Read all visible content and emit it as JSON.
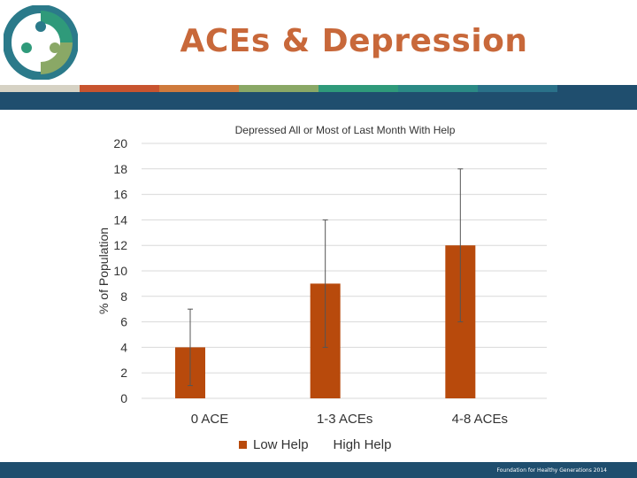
{
  "slide": {
    "title": "ACEs & Depression",
    "footer": "Foundation for Healthy Generations 2014"
  },
  "colors": {
    "title": "#c8683a",
    "band": "#1f4e6e",
    "bar": "#b84a0c",
    "stripe": [
      "#d6d2c4",
      "#c8542f",
      "#cf7a3c",
      "#8aa866",
      "#2f9a7a",
      "#2b8a85",
      "#2a7189",
      "#1f4e6e"
    ]
  },
  "chart_data": {
    "type": "bar",
    "title": "Depressed All or Most of Last Month With Help",
    "xlabel": "",
    "ylabel": "% of Population",
    "categories": [
      "0 ACE",
      "1-3 ACEs",
      "4-8 ACEs"
    ],
    "series": [
      {
        "name": "Low Help",
        "values": [
          4,
          9,
          12
        ],
        "error_low": [
          1,
          4,
          6
        ],
        "error_high": [
          7,
          14,
          18
        ]
      },
      {
        "name": "High Help",
        "values": [
          0,
          0,
          0
        ]
      }
    ],
    "ylim": [
      0,
      20
    ],
    "yticks": [
      "0",
      "2",
      "4",
      "6",
      "8",
      "10",
      "12",
      "14",
      "16",
      "18",
      "20"
    ],
    "grid": true,
    "legend": "bottom"
  }
}
